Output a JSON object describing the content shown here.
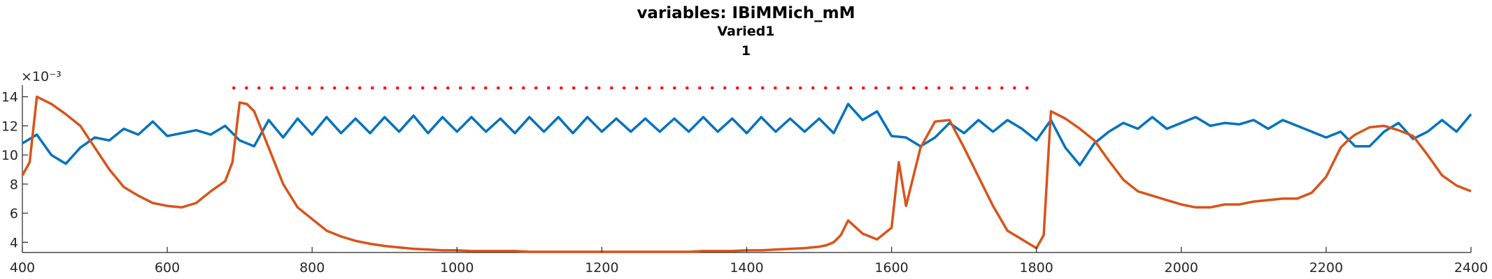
{
  "chart_data": {
    "type": "line",
    "title": "variables: IBiMMich_mM",
    "subtitle_lines": [
      "Varied1",
      "1"
    ],
    "xlabel": "",
    "ylabel": "",
    "y_exponent_label": "×10⁻³",
    "xlim": [
      400,
      2400
    ],
    "ylim": [
      3.3,
      14.8
    ],
    "x_ticks": [
      "400",
      "600",
      "800",
      "1000",
      "1200",
      "1400",
      "1600",
      "1800",
      "2000",
      "2200",
      "2400"
    ],
    "y_ticks": [
      "4",
      "6",
      "8",
      "10",
      "12",
      "14"
    ],
    "grid": false,
    "series": [
      {
        "color": "#0072BD",
        "x": [
          400,
          420,
          440,
          460,
          480,
          500,
          520,
          540,
          560,
          580,
          600,
          620,
          640,
          660,
          680,
          700,
          720,
          740,
          760,
          780,
          800,
          820,
          840,
          860,
          880,
          900,
          920,
          940,
          960,
          980,
          1000,
          1020,
          1040,
          1060,
          1080,
          1100,
          1120,
          1140,
          1160,
          1180,
          1200,
          1220,
          1240,
          1260,
          1280,
          1300,
          1320,
          1340,
          1360,
          1380,
          1400,
          1420,
          1440,
          1460,
          1480,
          1500,
          1520,
          1540,
          1560,
          1580,
          1600,
          1620,
          1640,
          1660,
          1680,
          1700,
          1720,
          1740,
          1760,
          1780,
          1800,
          1820,
          1840,
          1860,
          1880,
          1900,
          1920,
          1940,
          1960,
          1980,
          2000,
          2020,
          2040,
          2060,
          2080,
          2100,
          2120,
          2140,
          2160,
          2180,
          2200,
          2220,
          2240,
          2260,
          2280,
          2300,
          2320,
          2340,
          2360,
          2380,
          2400
        ],
        "y": [
          10.8,
          11.4,
          10.0,
          9.4,
          10.5,
          11.2,
          11.0,
          11.8,
          11.4,
          12.3,
          11.3,
          11.5,
          11.7,
          11.4,
          12.0,
          11.0,
          10.6,
          12.4,
          11.2,
          12.5,
          11.4,
          12.6,
          11.5,
          12.5,
          11.5,
          12.6,
          11.6,
          12.7,
          11.5,
          12.6,
          11.6,
          12.6,
          11.6,
          12.5,
          11.5,
          12.6,
          11.6,
          12.6,
          11.5,
          12.6,
          11.6,
          12.5,
          11.6,
          12.5,
          11.6,
          12.5,
          11.6,
          12.6,
          11.6,
          12.5,
          11.5,
          12.6,
          11.6,
          12.5,
          11.6,
          12.5,
          11.5,
          13.5,
          12.4,
          13.0,
          11.3,
          11.2,
          10.6,
          11.2,
          12.2,
          11.5,
          12.4,
          11.6,
          12.4,
          11.8,
          11.0,
          12.4,
          10.5,
          9.3,
          10.8,
          11.6,
          12.2,
          11.8,
          12.6,
          11.8,
          12.2,
          12.6,
          12.0,
          12.2,
          12.1,
          12.4,
          11.8,
          12.4,
          12.0,
          11.6,
          11.2,
          11.6,
          10.6,
          10.6,
          11.6,
          12.2,
          11.1,
          11.6,
          12.4,
          11.6,
          12.8
        ]
      },
      {
        "color": "#D95319",
        "x": [
          400,
          410,
          420,
          440,
          460,
          480,
          500,
          520,
          540,
          560,
          580,
          600,
          620,
          640,
          660,
          680,
          690,
          700,
          710,
          720,
          740,
          760,
          780,
          800,
          820,
          840,
          860,
          880,
          900,
          920,
          940,
          960,
          980,
          1000,
          1020,
          1040,
          1060,
          1080,
          1100,
          1120,
          1140,
          1160,
          1180,
          1200,
          1220,
          1240,
          1260,
          1280,
          1300,
          1320,
          1340,
          1360,
          1380,
          1400,
          1420,
          1440,
          1460,
          1480,
          1500,
          1510,
          1520,
          1530,
          1540,
          1560,
          1580,
          1600,
          1610,
          1620,
          1640,
          1660,
          1680,
          1700,
          1720,
          1740,
          1760,
          1780,
          1800,
          1810,
          1820,
          1840,
          1860,
          1880,
          1900,
          1920,
          1940,
          1960,
          1980,
          2000,
          2020,
          2040,
          2060,
          2080,
          2100,
          2120,
          2140,
          2160,
          2180,
          2200,
          2220,
          2230,
          2240,
          2260,
          2280,
          2300,
          2320,
          2340,
          2360,
          2380,
          2400
        ],
        "y": [
          8.6,
          9.5,
          14.0,
          13.5,
          12.8,
          12.0,
          10.5,
          9.0,
          7.8,
          7.2,
          6.7,
          6.5,
          6.4,
          6.7,
          7.5,
          8.2,
          9.5,
          13.6,
          13.5,
          13.0,
          10.5,
          8.0,
          6.4,
          5.6,
          4.8,
          4.4,
          4.1,
          3.9,
          3.75,
          3.65,
          3.55,
          3.5,
          3.45,
          3.45,
          3.4,
          3.4,
          3.4,
          3.4,
          3.35,
          3.35,
          3.35,
          3.35,
          3.35,
          3.35,
          3.35,
          3.35,
          3.35,
          3.35,
          3.35,
          3.35,
          3.4,
          3.4,
          3.4,
          3.45,
          3.45,
          3.5,
          3.55,
          3.6,
          3.7,
          3.8,
          4.0,
          4.5,
          5.5,
          4.6,
          4.2,
          5.0,
          9.5,
          6.5,
          10.5,
          12.3,
          12.4,
          10.5,
          8.5,
          6.5,
          4.8,
          4.2,
          3.6,
          4.5,
          13.0,
          12.5,
          11.8,
          11.0,
          9.6,
          8.3,
          7.5,
          7.2,
          6.9,
          6.6,
          6.4,
          6.4,
          6.6,
          6.6,
          6.8,
          6.9,
          7.0,
          7.0,
          7.4,
          8.5,
          10.5,
          11.0,
          11.4,
          11.9,
          12.0,
          11.7,
          11.3,
          10.0,
          8.6,
          7.9,
          7.5
        ]
      }
    ],
    "annotation": {
      "type": "dotted-line",
      "color": "#FF0000",
      "x_start": 690,
      "x_end": 1790,
      "y": 14.6
    }
  }
}
